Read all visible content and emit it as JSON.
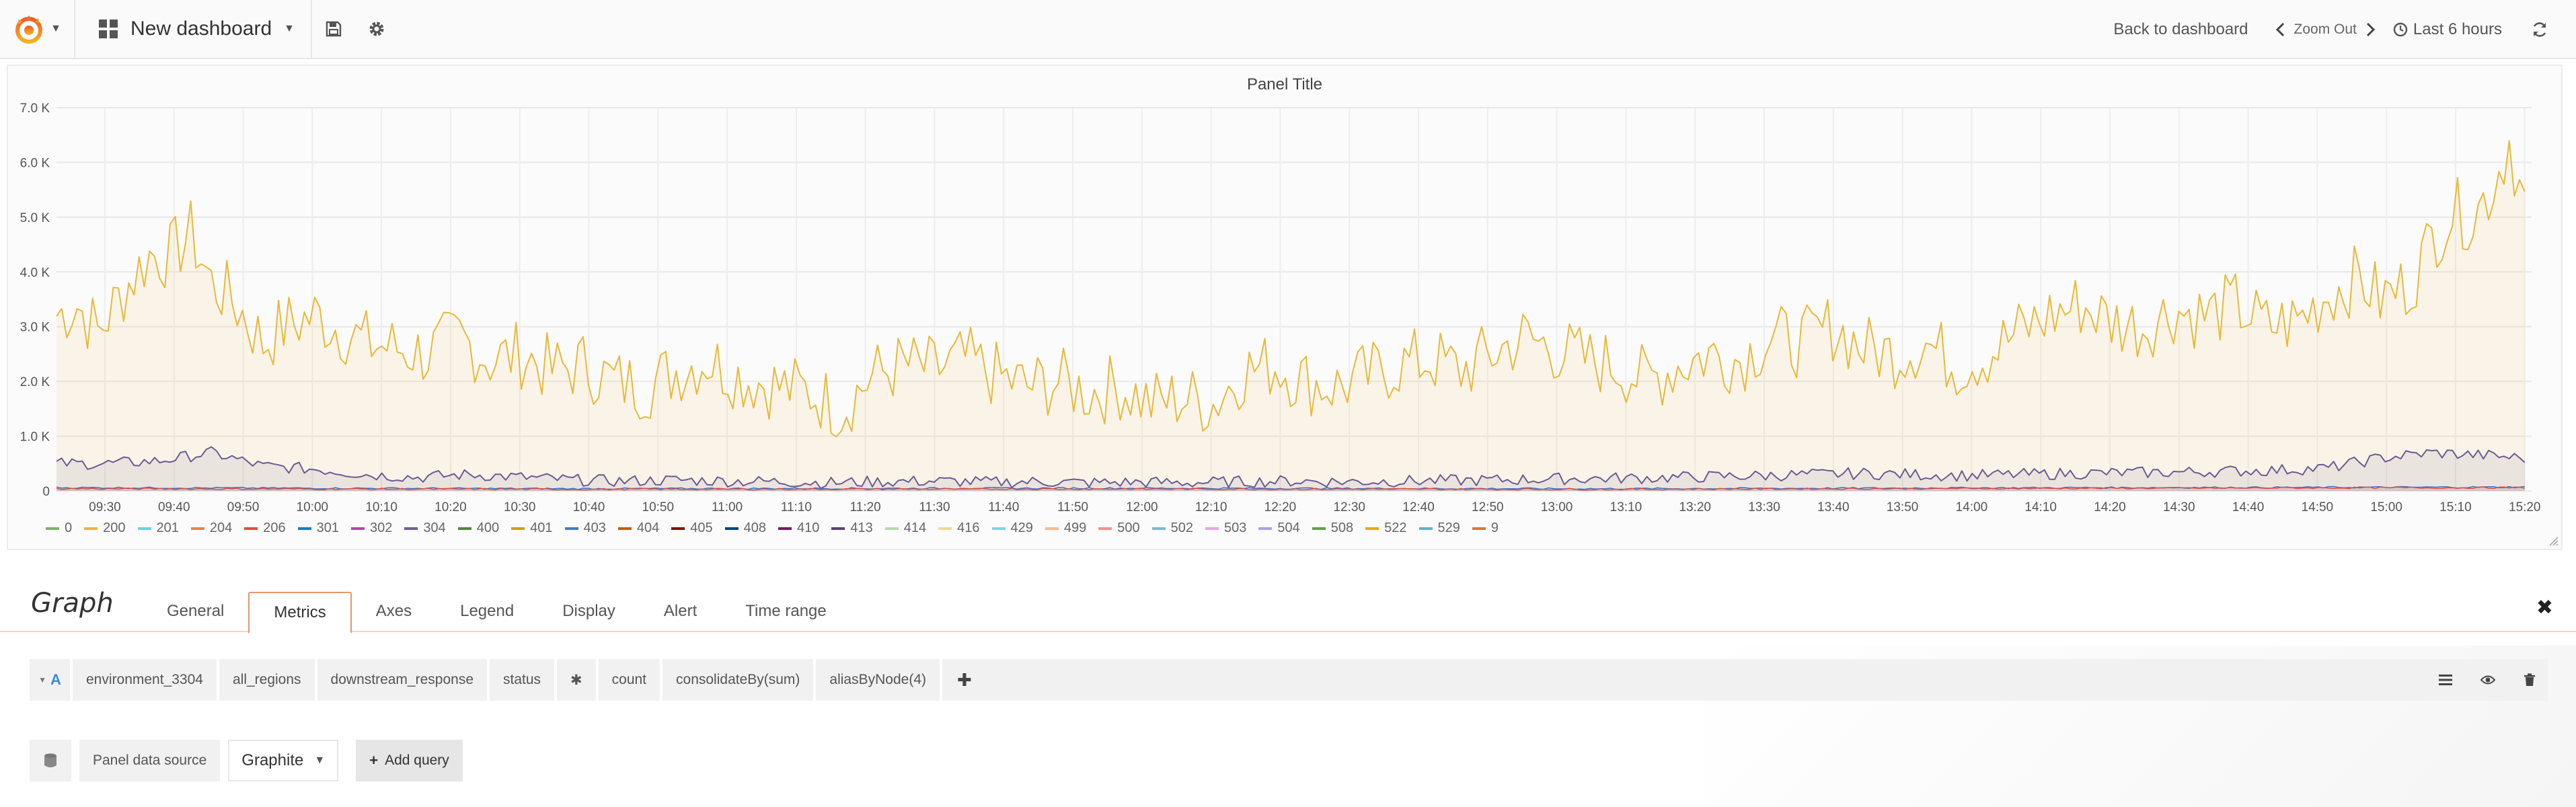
{
  "navbar": {
    "dashboard_title": "New dashboard",
    "back_label": "Back to dashboard",
    "zoom_label": "Zoom Out",
    "time_range": "Last 6 hours",
    "icons": [
      "grafana-logo-icon",
      "dashboard-grid-icon",
      "save-icon",
      "gear-icon",
      "chevron-left-icon",
      "chevron-right-icon",
      "clock-icon",
      "refresh-icon"
    ]
  },
  "panel": {
    "title": "Panel Title"
  },
  "chart_data": {
    "type": "area",
    "title": "Panel Title",
    "y_ticks": [
      "0",
      "1.0 K",
      "2.0 K",
      "3.0 K",
      "4.0 K",
      "5.0 K",
      "6.0 K",
      "7.0 K"
    ],
    "ylim": [
      0,
      7000
    ],
    "x_ticks": [
      "09:30",
      "09:40",
      "09:50",
      "10:00",
      "10:10",
      "10:20",
      "10:30",
      "10:40",
      "10:50",
      "11:00",
      "11:10",
      "11:20",
      "11:30",
      "11:40",
      "11:50",
      "12:00",
      "12:10",
      "12:20",
      "12:30",
      "12:40",
      "12:50",
      "13:00",
      "13:10",
      "13:20",
      "13:30",
      "13:40",
      "13:50",
      "14:00",
      "14:10",
      "14:20",
      "14:30",
      "14:40",
      "14:50",
      "15:00",
      "15:10",
      "15:20"
    ],
    "xlim": [
      "09:23",
      "15:21"
    ],
    "grid": true,
    "series": [
      {
        "name": "200",
        "color": "#eab839",
        "key": [
          [
            0,
            3200
          ],
          [
            4,
            3400
          ],
          [
            8,
            2900
          ],
          [
            14,
            3800
          ],
          [
            18,
            4300
          ],
          [
            22,
            4300
          ],
          [
            26,
            4700
          ],
          [
            30,
            3800
          ],
          [
            34,
            3500
          ],
          [
            40,
            2700
          ],
          [
            44,
            3000
          ],
          [
            50,
            3200
          ],
          [
            54,
            3000
          ],
          [
            60,
            2700
          ],
          [
            66,
            2600
          ],
          [
            72,
            2500
          ],
          [
            78,
            2800
          ],
          [
            84,
            2400
          ],
          [
            90,
            2500
          ],
          [
            96,
            2200
          ],
          [
            102,
            2300
          ],
          [
            108,
            2000
          ],
          [
            114,
            1900
          ],
          [
            120,
            2200
          ],
          [
            126,
            2400
          ],
          [
            132,
            2100
          ],
          [
            140,
            1900
          ],
          [
            146,
            1800
          ],
          [
            152,
            1500
          ],
          [
            158,
            2100
          ],
          [
            164,
            2300
          ],
          [
            170,
            2200
          ],
          [
            176,
            2400
          ],
          [
            182,
            2100
          ],
          [
            188,
            1900
          ],
          [
            194,
            2000
          ],
          [
            200,
            1800
          ],
          [
            206,
            1900
          ],
          [
            212,
            1600
          ],
          [
            218,
            1700
          ],
          [
            224,
            1600
          ],
          [
            230,
            2200
          ],
          [
            236,
            2300
          ],
          [
            242,
            2000
          ],
          [
            248,
            1900
          ],
          [
            254,
            2100
          ],
          [
            260,
            2300
          ],
          [
            266,
            2400
          ],
          [
            272,
            2200
          ],
          [
            278,
            2500
          ],
          [
            284,
            2800
          ],
          [
            290,
            2600
          ],
          [
            296,
            2400
          ],
          [
            302,
            2300
          ],
          [
            308,
            2000
          ],
          [
            314,
            2300
          ],
          [
            320,
            2500
          ],
          [
            326,
            2400
          ],
          [
            332,
            2800
          ],
          [
            338,
            2700
          ],
          [
            344,
            3000
          ],
          [
            350,
            2600
          ],
          [
            356,
            2500
          ],
          [
            362,
            2700
          ],
          [
            368,
            2300
          ],
          [
            374,
            2500
          ],
          [
            380,
            2900
          ],
          [
            386,
            3200
          ],
          [
            392,
            3400
          ],
          [
            398,
            3100
          ],
          [
            404,
            3000
          ],
          [
            410,
            3300
          ],
          [
            416,
            3200
          ],
          [
            422,
            3400
          ],
          [
            428,
            3000
          ],
          [
            434,
            3100
          ],
          [
            440,
            3600
          ],
          [
            446,
            3900
          ],
          [
            450,
            3500
          ],
          [
            456,
            3800
          ],
          [
            460,
            4600
          ],
          [
            464,
            5100
          ],
          [
            468,
            5000
          ],
          [
            472,
            5600
          ],
          [
            475,
            6400
          ],
          [
            478,
            5200
          ]
        ],
        "values_note": ""
      },
      {
        "name": "504",
        "color": "#6d5a92",
        "key": [
          [
            0,
            500
          ],
          [
            10,
            500
          ],
          [
            20,
            550
          ],
          [
            30,
            700
          ],
          [
            40,
            450
          ],
          [
            50,
            400
          ],
          [
            60,
            300
          ],
          [
            70,
            250
          ],
          [
            80,
            300
          ],
          [
            90,
            250
          ],
          [
            100,
            200
          ],
          [
            110,
            180
          ],
          [
            120,
            200
          ],
          [
            130,
            180
          ],
          [
            140,
            170
          ],
          [
            150,
            150
          ],
          [
            160,
            170
          ],
          [
            170,
            180
          ],
          [
            180,
            160
          ],
          [
            190,
            170
          ],
          [
            200,
            150
          ],
          [
            210,
            160
          ],
          [
            220,
            150
          ],
          [
            230,
            170
          ],
          [
            240,
            180
          ],
          [
            250,
            170
          ],
          [
            260,
            180
          ],
          [
            270,
            190
          ],
          [
            280,
            200
          ],
          [
            290,
            220
          ],
          [
            300,
            230
          ],
          [
            310,
            240
          ],
          [
            320,
            260
          ],
          [
            330,
            280
          ],
          [
            340,
            300
          ],
          [
            350,
            320
          ],
          [
            360,
            300
          ],
          [
            370,
            280
          ],
          [
            380,
            300
          ],
          [
            390,
            320
          ],
          [
            400,
            330
          ],
          [
            410,
            340
          ],
          [
            420,
            360
          ],
          [
            430,
            380
          ],
          [
            440,
            420
          ],
          [
            450,
            600
          ],
          [
            460,
            700
          ],
          [
            470,
            650
          ],
          [
            478,
            600
          ]
        ]
      },
      {
        "name": "502",
        "color": "#3c6fc1",
        "key": [
          [
            0,
            60
          ],
          [
            100,
            40
          ],
          [
            200,
            50
          ],
          [
            300,
            40
          ],
          [
            400,
            60
          ],
          [
            478,
            70
          ]
        ]
      },
      {
        "name": "500",
        "color": "#e24d42",
        "key": [
          [
            0,
            40
          ],
          [
            100,
            30
          ],
          [
            200,
            35
          ],
          [
            300,
            30
          ],
          [
            400,
            50
          ],
          [
            478,
            60
          ]
        ]
      }
    ],
    "legend": [
      {
        "label": "0",
        "color": "#7eb26d"
      },
      {
        "label": "200",
        "color": "#eab839"
      },
      {
        "label": "201",
        "color": "#6ed0e0"
      },
      {
        "label": "204",
        "color": "#ef843c"
      },
      {
        "label": "206",
        "color": "#e24d42"
      },
      {
        "label": "301",
        "color": "#1f78c1"
      },
      {
        "label": "302",
        "color": "#ba43a9"
      },
      {
        "label": "304",
        "color": "#705da0"
      },
      {
        "label": "400",
        "color": "#508642"
      },
      {
        "label": "401",
        "color": "#cca300"
      },
      {
        "label": "403",
        "color": "#447ebc"
      },
      {
        "label": "404",
        "color": "#c15c17"
      },
      {
        "label": "405",
        "color": "#890f02"
      },
      {
        "label": "408",
        "color": "#0a437c"
      },
      {
        "label": "410",
        "color": "#6d1f62"
      },
      {
        "label": "413",
        "color": "#584477"
      },
      {
        "label": "414",
        "color": "#b7dbab"
      },
      {
        "label": "416",
        "color": "#f4d598"
      },
      {
        "label": "429",
        "color": "#70dbed"
      },
      {
        "label": "499",
        "color": "#f9ba8f"
      },
      {
        "label": "500",
        "color": "#f29191"
      },
      {
        "label": "502",
        "color": "#82b5d8"
      },
      {
        "label": "503",
        "color": "#e5a8e2"
      },
      {
        "label": "504",
        "color": "#aea2e0"
      },
      {
        "label": "508",
        "color": "#629e51"
      },
      {
        "label": "522",
        "color": "#e5ac0e"
      },
      {
        "label": "529",
        "color": "#64b0c8"
      },
      {
        "label": "9",
        "color": "#e0752d"
      }
    ],
    "legend_placement": "bottom"
  },
  "editor": {
    "title": "Graph",
    "tabs": [
      "General",
      "Metrics",
      "Axes",
      "Legend",
      "Display",
      "Alert",
      "Time range"
    ],
    "active_tab": "Metrics",
    "query": {
      "letter": "A",
      "segments": [
        "environment_3304",
        "all_regions",
        "downstream_response",
        "status",
        "✱",
        "count",
        "consolidateBy(sum)",
        "aliasByNode(4)"
      ]
    },
    "datasource_label": "Panel data source",
    "datasource_value": "Graphite",
    "add_query_label": "Add query"
  }
}
